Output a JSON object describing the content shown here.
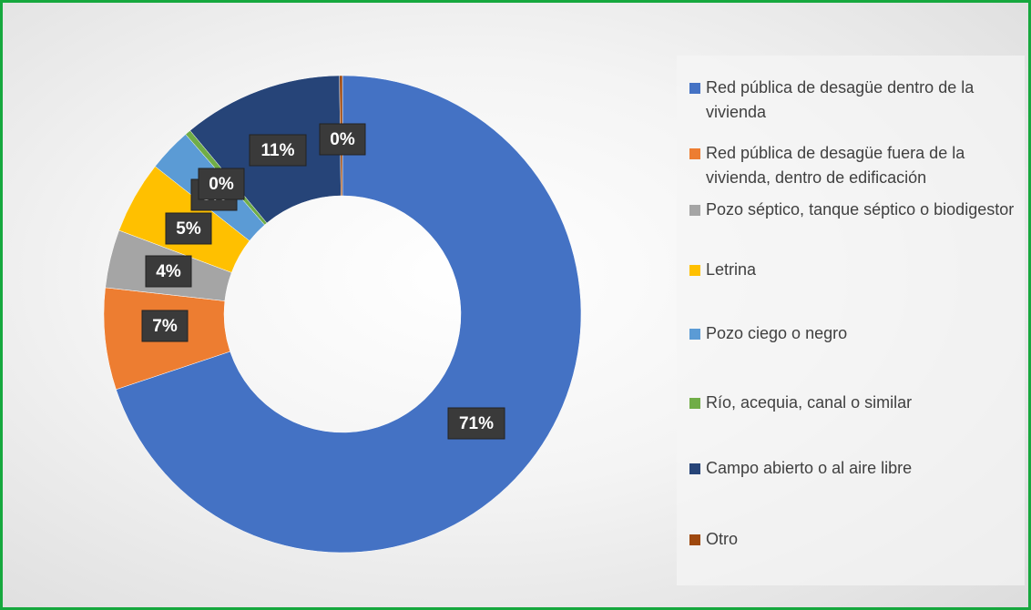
{
  "chart_data": {
    "type": "donut",
    "categories": [
      "Red pública de desagüe dentro de la vivienda",
      "Red pública de desagüe fuera de la vivienda, dentro de edificación",
      "Pozo séptico, tanque séptico o biodigestor",
      "Letrina",
      "Pozo ciego o negro",
      "Río, acequia, canal o similar",
      "Campo abierto o al aire libre",
      "Otro"
    ],
    "values": [
      71,
      7,
      4,
      5,
      3,
      0.4,
      11,
      0.2
    ],
    "value_labels": [
      "71%",
      "7%",
      "4%",
      "5%",
      "3%",
      "0%",
      "11%",
      "0%"
    ],
    "colors": [
      "#4472c4",
      "#ed7d31",
      "#a5a5a5",
      "#ffc000",
      "#5b9bd5",
      "#70ad47",
      "#264478",
      "#9e480e"
    ],
    "legend": "right"
  }
}
